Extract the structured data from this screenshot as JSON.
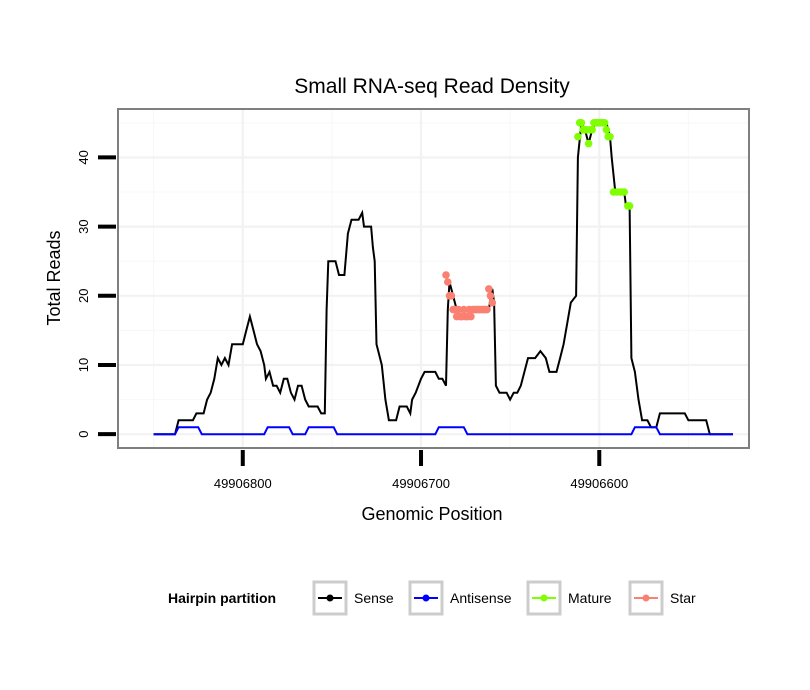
{
  "chart_data": {
    "type": "line",
    "title": "Small RNA-seq Read Density",
    "xlabel": "Genomic Position",
    "ylabel": "Total Reads",
    "x_reversed": true,
    "xlim": [
      49906870,
      49906516
    ],
    "ylim": [
      -2,
      47
    ],
    "x_ticks": [
      49906800,
      49906700,
      49906600
    ],
    "x_tick_labels": [
      "49906800",
      "49906700",
      "49906600"
    ],
    "y_ticks": [
      0,
      10,
      20,
      30,
      40
    ],
    "y_tick_labels": [
      "0",
      "10",
      "20",
      "30",
      "40"
    ],
    "grid": true,
    "legend": {
      "title": "Hairpin partition",
      "position": "bottom",
      "entries": [
        "Sense",
        "Antisense",
        "Mature",
        "Star"
      ]
    },
    "series": [
      {
        "name": "Sense",
        "color": "#000000",
        "points": [
          [
            49906850,
            0
          ],
          [
            49906838,
            0
          ],
          [
            49906836,
            2
          ],
          [
            49906828,
            2
          ],
          [
            49906826,
            3
          ],
          [
            49906822,
            3
          ],
          [
            49906820,
            5
          ],
          [
            49906818,
            6
          ],
          [
            49906816,
            8
          ],
          [
            49906814,
            11
          ],
          [
            49906812,
            10
          ],
          [
            49906810,
            11
          ],
          [
            49906808,
            10
          ],
          [
            49906806,
            13
          ],
          [
            49906800,
            13
          ],
          [
            49906798,
            15
          ],
          [
            49906796,
            17
          ],
          [
            49906794,
            15
          ],
          [
            49906792,
            13
          ],
          [
            49906790,
            12
          ],
          [
            49906788,
            10
          ],
          [
            49906787,
            8
          ],
          [
            49906785,
            9
          ],
          [
            49906783,
            7
          ],
          [
            49906781,
            7
          ],
          [
            49906779,
            6
          ],
          [
            49906777,
            8
          ],
          [
            49906775,
            8
          ],
          [
            49906773,
            6
          ],
          [
            49906771,
            5
          ],
          [
            49906769,
            7
          ],
          [
            49906767,
            7
          ],
          [
            49906765,
            5
          ],
          [
            49906763,
            4
          ],
          [
            49906758,
            4
          ],
          [
            49906756,
            3
          ],
          [
            49906754,
            3
          ],
          [
            49906753,
            18
          ],
          [
            49906752,
            25
          ],
          [
            49906748,
            25
          ],
          [
            49906746,
            23
          ],
          [
            49906743,
            23
          ],
          [
            49906741,
            29
          ],
          [
            49906739,
            31
          ],
          [
            49906735,
            31
          ],
          [
            49906733,
            32
          ],
          [
            49906732,
            30
          ],
          [
            49906728,
            30
          ],
          [
            49906727,
            27
          ],
          [
            49906726,
            25
          ],
          [
            49906725,
            13
          ],
          [
            49906722,
            10
          ],
          [
            49906720,
            5
          ],
          [
            49906718,
            2
          ],
          [
            49906714,
            2
          ],
          [
            49906712,
            4
          ],
          [
            49906708,
            4
          ],
          [
            49906706,
            3
          ],
          [
            49906705,
            5
          ],
          [
            49906703,
            6
          ],
          [
            49906700,
            8
          ],
          [
            49906698,
            9
          ],
          [
            49906692,
            9
          ],
          [
            49906690,
            8
          ],
          [
            49906688,
            8
          ],
          [
            49906686,
            7
          ],
          [
            49906685,
            18
          ],
          [
            49906684,
            22
          ],
          [
            49906682,
            20
          ],
          [
            49906680,
            18
          ],
          [
            49906662,
            18
          ],
          [
            49906660,
            21
          ],
          [
            49906659,
            19
          ],
          [
            49906658,
            7
          ],
          [
            49906656,
            6
          ],
          [
            49906652,
            6
          ],
          [
            49906650,
            5
          ],
          [
            49906648,
            6
          ],
          [
            49906646,
            6
          ],
          [
            49906644,
            7
          ],
          [
            49906642,
            9
          ],
          [
            49906640,
            11
          ],
          [
            49906636,
            11
          ],
          [
            49906633,
            12
          ],
          [
            49906630,
            11
          ],
          [
            49906628,
            9
          ],
          [
            49906624,
            9
          ],
          [
            49906622,
            11
          ],
          [
            49906620,
            13
          ],
          [
            49906618,
            16
          ],
          [
            49906616,
            19
          ],
          [
            49906613,
            20
          ],
          [
            49906612,
            40
          ],
          [
            49906610,
            45
          ],
          [
            49906608,
            44
          ],
          [
            49906606,
            42
          ],
          [
            49906604,
            44
          ],
          [
            49906602,
            45
          ],
          [
            49906596,
            45
          ],
          [
            49906594,
            43
          ],
          [
            49906593,
            40
          ],
          [
            49906591,
            35
          ],
          [
            49906586,
            35
          ],
          [
            49906585,
            33
          ],
          [
            49906583,
            33
          ],
          [
            49906582,
            11
          ],
          [
            49906580,
            9
          ],
          [
            49906578,
            5
          ],
          [
            49906576,
            2
          ],
          [
            49906573,
            2
          ],
          [
            49906571,
            1
          ],
          [
            49906568,
            1
          ],
          [
            49906566,
            3
          ],
          [
            49906552,
            3
          ],
          [
            49906550,
            2
          ],
          [
            49906540,
            2
          ],
          [
            49906538,
            0
          ],
          [
            49906525,
            0
          ]
        ]
      },
      {
        "name": "Antisense",
        "color": "#0000ff",
        "points": [
          [
            49906850,
            0
          ],
          [
            49906838,
            0
          ],
          [
            49906836,
            1
          ],
          [
            49906825,
            1
          ],
          [
            49906823,
            0
          ],
          [
            49906788,
            0
          ],
          [
            49906786,
            1
          ],
          [
            49906774,
            1
          ],
          [
            49906772,
            0
          ],
          [
            49906765,
            0
          ],
          [
            49906763,
            1
          ],
          [
            49906749,
            1
          ],
          [
            49906747,
            0
          ],
          [
            49906692,
            0
          ],
          [
            49906690,
            1
          ],
          [
            49906676,
            1
          ],
          [
            49906674,
            0
          ],
          [
            49906582,
            0
          ],
          [
            49906580,
            1
          ],
          [
            49906568,
            1
          ],
          [
            49906566,
            0
          ],
          [
            49906525,
            0
          ]
        ]
      },
      {
        "name": "Mature",
        "color": "#7fff00",
        "points": [
          [
            49906612,
            43
          ],
          [
            49906611,
            45
          ],
          [
            49906610,
            45
          ],
          [
            49906609,
            44
          ],
          [
            49906608,
            44
          ],
          [
            49906607,
            44
          ],
          [
            49906606,
            42
          ],
          [
            49906605,
            44
          ],
          [
            49906604,
            44
          ],
          [
            49906603,
            45
          ],
          [
            49906602,
            45
          ],
          [
            49906601,
            45
          ],
          [
            49906600,
            45
          ],
          [
            49906599,
            45
          ],
          [
            49906598,
            45
          ],
          [
            49906597,
            45
          ],
          [
            49906596,
            44
          ],
          [
            49906595,
            43
          ],
          [
            49906594,
            43
          ],
          [
            49906592,
            35
          ],
          [
            49906590,
            35
          ],
          [
            49906588,
            35
          ],
          [
            49906586,
            35
          ],
          [
            49906584,
            33
          ],
          [
            49906583,
            33
          ]
        ]
      },
      {
        "name": "Star",
        "color": "#fa8072",
        "points": [
          [
            49906686,
            23
          ],
          [
            49906685,
            22
          ],
          [
            49906684,
            20
          ],
          [
            49906683,
            20
          ],
          [
            49906682,
            18
          ],
          [
            49906681,
            18
          ],
          [
            49906680,
            17
          ],
          [
            49906679,
            18
          ],
          [
            49906678,
            17
          ],
          [
            49906677,
            17
          ],
          [
            49906676,
            18
          ],
          [
            49906675,
            17
          ],
          [
            49906674,
            17
          ],
          [
            49906673,
            18
          ],
          [
            49906672,
            17
          ],
          [
            49906671,
            18
          ],
          [
            49906670,
            18
          ],
          [
            49906669,
            18
          ],
          [
            49906668,
            18
          ],
          [
            49906667,
            18
          ],
          [
            49906666,
            18
          ],
          [
            49906665,
            18
          ],
          [
            49906664,
            18
          ],
          [
            49906663,
            18
          ],
          [
            49906662,
            21
          ],
          [
            49906661,
            20
          ],
          [
            49906660,
            19
          ]
        ]
      }
    ]
  }
}
